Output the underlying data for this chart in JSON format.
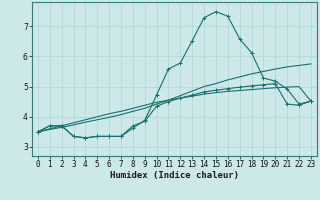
{
  "xlabel": "Humidex (Indice chaleur)",
  "background_color": "#cde8e8",
  "grid_color": "#aed4d4",
  "line_color": "#1a6e6e",
  "x_ticks": [
    0,
    1,
    2,
    3,
    4,
    5,
    6,
    7,
    8,
    9,
    10,
    11,
    12,
    13,
    14,
    15,
    16,
    17,
    18,
    19,
    20,
    21,
    22,
    23
  ],
  "y_ticks": [
    3,
    4,
    5,
    6,
    7
  ],
  "ylim": [
    2.7,
    7.8
  ],
  "xlim": [
    -0.5,
    23.5
  ],
  "line1_x": [
    0,
    1,
    2,
    3,
    4,
    5,
    6,
    7,
    8,
    9,
    10,
    11,
    12,
    13,
    14,
    15,
    16,
    17,
    18,
    19,
    20,
    21,
    22,
    23
  ],
  "line1_y": [
    3.5,
    3.7,
    3.7,
    3.35,
    3.3,
    3.35,
    3.35,
    3.35,
    3.7,
    3.85,
    4.35,
    4.5,
    4.62,
    4.72,
    4.82,
    4.88,
    4.93,
    4.98,
    5.02,
    5.06,
    5.1,
    4.42,
    4.38,
    4.52
  ],
  "line2_x": [
    0,
    1,
    2,
    3,
    4,
    5,
    6,
    7,
    8,
    9,
    10,
    11,
    12,
    13,
    14,
    15,
    16,
    17,
    18,
    19,
    20,
    21,
    22,
    23
  ],
  "line2_y": [
    3.5,
    3.6,
    3.7,
    3.8,
    3.9,
    4.0,
    4.1,
    4.18,
    4.28,
    4.38,
    4.48,
    4.55,
    4.62,
    4.68,
    4.75,
    4.8,
    4.84,
    4.87,
    4.9,
    4.93,
    4.96,
    4.98,
    5.0,
    4.52
  ],
  "line3_x": [
    0,
    1,
    2,
    3,
    4,
    5,
    6,
    7,
    8,
    9,
    10,
    11,
    12,
    13,
    14,
    15,
    16,
    17,
    18,
    19,
    20,
    21,
    22,
    23
  ],
  "line3_y": [
    3.5,
    3.58,
    3.65,
    3.73,
    3.82,
    3.9,
    3.98,
    4.07,
    4.18,
    4.28,
    4.42,
    4.55,
    4.7,
    4.85,
    5.0,
    5.1,
    5.22,
    5.32,
    5.42,
    5.5,
    5.58,
    5.65,
    5.7,
    5.75
  ],
  "line4_x": [
    0,
    1,
    2,
    3,
    4,
    5,
    6,
    7,
    8,
    9,
    10,
    11,
    12,
    13,
    14,
    15,
    16,
    17,
    18,
    19,
    20,
    21,
    22,
    23
  ],
  "line4_y": [
    3.5,
    3.7,
    3.7,
    3.35,
    3.3,
    3.35,
    3.35,
    3.35,
    3.62,
    3.88,
    4.72,
    5.58,
    5.78,
    6.52,
    7.28,
    7.48,
    7.33,
    6.58,
    6.12,
    5.28,
    5.18,
    4.92,
    4.42,
    4.52
  ],
  "tick_fontsize": 5.5,
  "xlabel_fontsize": 6.5
}
